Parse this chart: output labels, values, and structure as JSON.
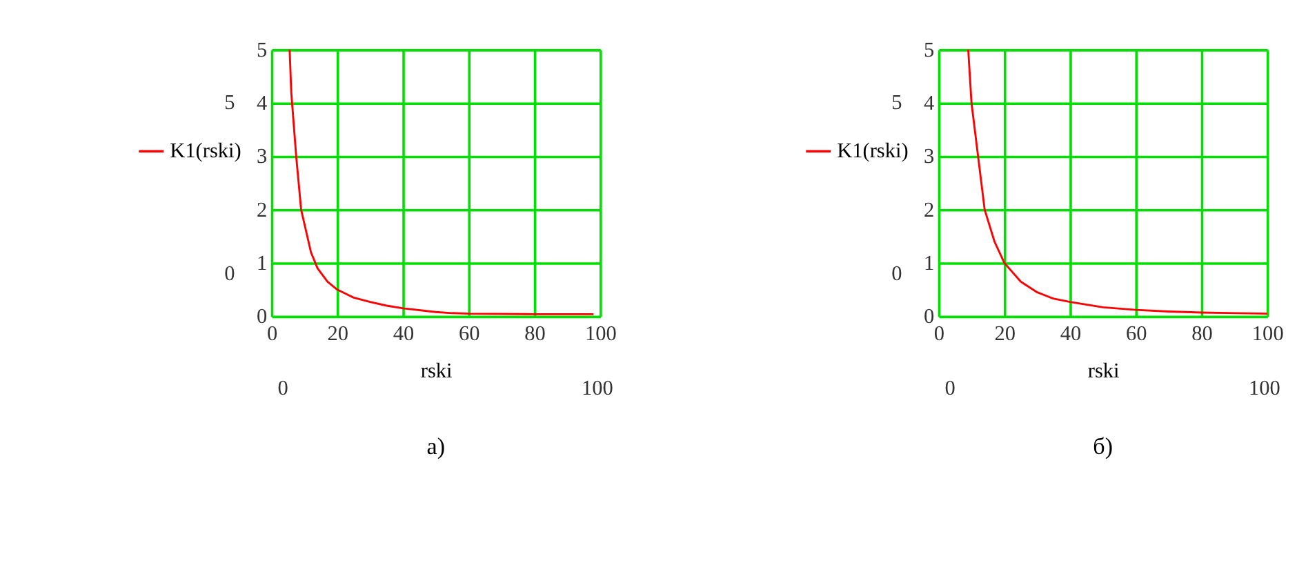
{
  "chart_data": [
    {
      "type": "line",
      "title": "а)",
      "xlabel": "rski",
      "annotations": [
        "5",
        "0",
        "0",
        "100"
      ],
      "series": [
        {
          "name": "K1(rski)",
          "color": "#ff0000",
          "x": [
            5.5,
            6,
            7.5,
            9,
            12,
            14,
            17,
            20,
            25,
            30,
            35,
            40,
            50,
            55,
            60,
            80,
            98
          ],
          "values": [
            5,
            4.2,
            3,
            2,
            1.2,
            0.9,
            0.65,
            0.5,
            0.35,
            0.27,
            0.2,
            0.15,
            0.08,
            0.06,
            0.05,
            0.04,
            0.04
          ]
        }
      ],
      "xlim": [
        0,
        100
      ],
      "xticks": [
        0,
        20,
        40,
        60,
        80,
        100
      ],
      "ylim": [
        0,
        5
      ],
      "yticks": [
        0,
        1,
        2,
        3,
        4,
        5
      ],
      "grid": true,
      "legend": "left",
      "marker": "none"
    },
    {
      "type": "line",
      "title": "б)",
      "xlabel": "rski",
      "annotations": [
        "5",
        "0",
        "0",
        "100"
      ],
      "series": [
        {
          "name": "K1(rski)",
          "color": "#ff0000",
          "x": [
            9,
            10,
            12,
            14,
            17,
            20,
            25,
            30,
            35,
            40,
            50,
            60,
            70,
            80,
            100
          ],
          "values": [
            5,
            4,
            3,
            2,
            1.4,
            1,
            0.65,
            0.45,
            0.33,
            0.27,
            0.17,
            0.12,
            0.09,
            0.07,
            0.05
          ]
        }
      ],
      "xlim": [
        0,
        100
      ],
      "xticks": [
        0,
        20,
        40,
        60,
        80,
        100
      ],
      "ylim": [
        0,
        5
      ],
      "yticks": [
        0,
        1,
        2,
        3,
        4,
        5
      ],
      "grid": true,
      "legend": "left",
      "marker": "none"
    }
  ]
}
